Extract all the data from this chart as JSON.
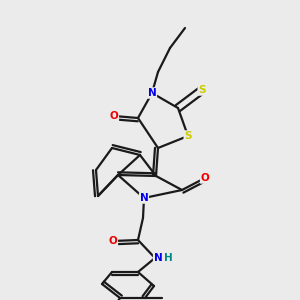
{
  "bg_color": "#ebebeb",
  "atom_colors": {
    "C": "#1a1a1a",
    "N": "#0000ee",
    "O": "#ee0000",
    "S": "#cccc00",
    "H": "#008888"
  },
  "bond_color": "#1a1a1a",
  "bond_lw": 1.6
}
